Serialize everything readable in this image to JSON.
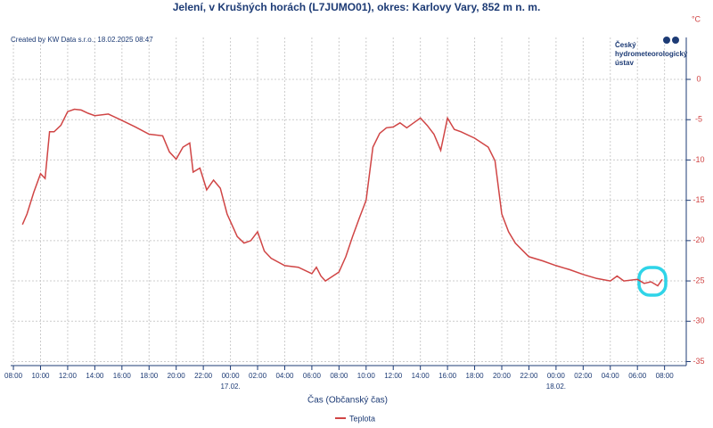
{
  "chart_data": {
    "type": "line",
    "title": "Jelení, v Krušných horách (L7JUMO01), okres: Karlovy Vary, 852 m n. m.",
    "credit": "Created by KW Data s.r.o., 18.02.2025 08:47",
    "logo": [
      "Český",
      "hydrometeorologický",
      "ústav"
    ],
    "y_unit": "°C",
    "x_label": "Čas (Občanský čas)",
    "grid": true,
    "legend": "bottom",
    "y_axis_side": "right",
    "xlim": [
      "2025-02-16T07:48",
      "2025-02-18T09:36"
    ],
    "ylim": [
      -35.5,
      5.2
    ],
    "yticks": [
      0,
      -5,
      -10,
      -15,
      -20,
      -25,
      -30,
      -35
    ],
    "xticks": [
      {
        "value": "2025-02-16T08:00",
        "label": "08:00"
      },
      {
        "value": "2025-02-16T10:00",
        "label": "10:00"
      },
      {
        "value": "2025-02-16T12:00",
        "label": "12:00"
      },
      {
        "value": "2025-02-16T14:00",
        "label": "14:00"
      },
      {
        "value": "2025-02-16T16:00",
        "label": "16:00"
      },
      {
        "value": "2025-02-16T18:00",
        "label": "18:00"
      },
      {
        "value": "2025-02-16T20:00",
        "label": "20:00"
      },
      {
        "value": "2025-02-16T22:00",
        "label": "22:00"
      },
      {
        "value": "2025-02-17T00:00",
        "label": "00:00"
      },
      {
        "value": "2025-02-17T02:00",
        "label": "02:00"
      },
      {
        "value": "2025-02-17T04:00",
        "label": "04:00"
      },
      {
        "value": "2025-02-17T06:00",
        "label": "06:00"
      },
      {
        "value": "2025-02-17T08:00",
        "label": "08:00"
      },
      {
        "value": "2025-02-17T10:00",
        "label": "10:00"
      },
      {
        "value": "2025-02-17T12:00",
        "label": "12:00"
      },
      {
        "value": "2025-02-17T14:00",
        "label": "14:00"
      },
      {
        "value": "2025-02-17T16:00",
        "label": "16:00"
      },
      {
        "value": "2025-02-17T18:00",
        "label": "18:00"
      },
      {
        "value": "2025-02-17T20:00",
        "label": "20:00"
      },
      {
        "value": "2025-02-17T22:00",
        "label": "22:00"
      },
      {
        "value": "2025-02-18T00:00",
        "label": "00:00"
      },
      {
        "value": "2025-02-18T02:00",
        "label": "02:00"
      },
      {
        "value": "2025-02-18T04:00",
        "label": "04:00"
      },
      {
        "value": "2025-02-18T06:00",
        "label": "06:00"
      },
      {
        "value": "2025-02-18T08:00",
        "label": "08:00"
      }
    ],
    "x_date_labels": [
      {
        "value": "2025-02-17T00:00",
        "label": "17.02."
      },
      {
        "value": "2025-02-18T00:00",
        "label": "18.02."
      }
    ],
    "x": [
      "2025-02-16T08:40",
      "2025-02-16T09:00",
      "2025-02-16T09:30",
      "2025-02-16T10:00",
      "2025-02-16T10:20",
      "2025-02-16T10:40",
      "2025-02-16T11:00",
      "2025-02-16T11:30",
      "2025-02-16T12:00",
      "2025-02-16T12:30",
      "2025-02-16T13:00",
      "2025-02-16T13:30",
      "2025-02-16T14:00",
      "2025-02-16T15:00",
      "2025-02-16T16:00",
      "2025-02-16T17:00",
      "2025-02-16T18:00",
      "2025-02-16T19:00",
      "2025-02-16T19:30",
      "2025-02-16T20:00",
      "2025-02-16T20:30",
      "2025-02-16T21:00",
      "2025-02-16T21:15",
      "2025-02-16T21:45",
      "2025-02-16T22:15",
      "2025-02-16T22:45",
      "2025-02-16T23:15",
      "2025-02-16T23:45",
      "2025-02-17T00:30",
      "2025-02-17T01:00",
      "2025-02-17T01:30",
      "2025-02-17T02:00",
      "2025-02-17T02:30",
      "2025-02-17T03:00",
      "2025-02-17T04:00",
      "2025-02-17T05:00",
      "2025-02-17T06:00",
      "2025-02-17T06:20",
      "2025-02-17T06:40",
      "2025-02-17T07:00",
      "2025-02-17T08:00",
      "2025-02-17T08:30",
      "2025-02-17T09:00",
      "2025-02-17T09:30",
      "2025-02-17T10:00",
      "2025-02-17T10:30",
      "2025-02-17T11:00",
      "2025-02-17T11:30",
      "2025-02-17T12:00",
      "2025-02-17T12:30",
      "2025-02-17T13:00",
      "2025-02-17T13:30",
      "2025-02-17T14:00",
      "2025-02-17T14:30",
      "2025-02-17T15:00",
      "2025-02-17T15:30",
      "2025-02-17T16:00",
      "2025-02-17T16:30",
      "2025-02-17T17:00",
      "2025-02-17T18:00",
      "2025-02-17T19:00",
      "2025-02-17T19:30",
      "2025-02-17T20:00",
      "2025-02-17T20:30",
      "2025-02-17T21:00",
      "2025-02-17T22:00",
      "2025-02-17T23:00",
      "2025-02-18T00:00",
      "2025-02-18T01:00",
      "2025-02-18T02:00",
      "2025-02-18T03:00",
      "2025-02-18T04:00",
      "2025-02-18T04:30",
      "2025-02-18T05:00",
      "2025-02-18T06:00",
      "2025-02-18T06:30",
      "2025-02-18T07:00",
      "2025-02-18T07:30",
      "2025-02-18T07:50"
    ],
    "series": [
      {
        "name": "Teplota",
        "color": "#d04545",
        "values": [
          -18.0,
          -16.7,
          -14.0,
          -11.7,
          -12.3,
          -6.5,
          -6.5,
          -5.7,
          -4.0,
          -3.7,
          -3.8,
          -4.2,
          -4.5,
          -4.3,
          -5.1,
          -5.9,
          -6.8,
          -7.0,
          -9.0,
          -9.9,
          -8.4,
          -7.9,
          -11.5,
          -11.0,
          -13.7,
          -12.5,
          -13.5,
          -16.7,
          -19.5,
          -20.3,
          -20.0,
          -18.9,
          -21.3,
          -22.2,
          -23.1,
          -23.3,
          -24.1,
          -23.3,
          -24.4,
          -25.0,
          -23.9,
          -22.0,
          -19.5,
          -17.2,
          -15.0,
          -8.4,
          -6.7,
          -6.0,
          -5.9,
          -5.4,
          -6.0,
          -5.4,
          -4.8,
          -5.7,
          -6.8,
          -8.8,
          -4.8,
          -6.2,
          -6.5,
          -7.3,
          -8.4,
          -10.1,
          -16.7,
          -18.9,
          -20.3,
          -22.0,
          -22.5,
          -23.1,
          -23.6,
          -24.2,
          -24.7,
          -25.0,
          -24.4,
          -25.0,
          -24.8,
          -25.3,
          -25.1,
          -25.6,
          -24.8
        ]
      }
    ]
  }
}
